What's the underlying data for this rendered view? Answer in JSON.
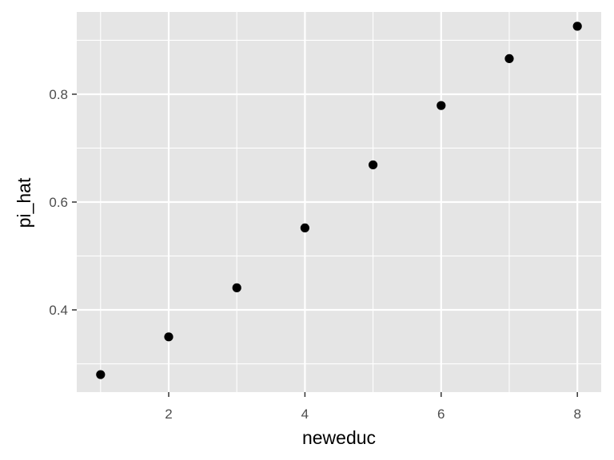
{
  "chart_data": {
    "type": "scatter",
    "xlabel": "neweduc",
    "ylabel": "pi_hat",
    "xlim": [
      0.65,
      8.35
    ],
    "ylim": [
      0.2475,
      0.9525
    ],
    "x_ticks": [
      2,
      4,
      6,
      8
    ],
    "x_tick_labels": [
      "2",
      "4",
      "6",
      "8"
    ],
    "x_minor_ticks": [
      1,
      3,
      5,
      7
    ],
    "y_ticks": [
      0.4,
      0.6,
      0.8
    ],
    "y_tick_labels": [
      "0.4",
      "0.6",
      "0.8"
    ],
    "y_minor_ticks": [
      0.3,
      0.5,
      0.7,
      0.9
    ],
    "grid": true,
    "legend": "none",
    "colors": {
      "panel": "#e5e5e5",
      "grid": "#ffffff",
      "point": "#000000",
      "tick_text": "#4d4d4d",
      "tick_mark": "#333333"
    },
    "points": [
      {
        "x": 1,
        "y": 0.28
      },
      {
        "x": 2,
        "y": 0.35
      },
      {
        "x": 3,
        "y": 0.441
      },
      {
        "x": 4,
        "y": 0.552
      },
      {
        "x": 5,
        "y": 0.669
      },
      {
        "x": 6,
        "y": 0.779
      },
      {
        "x": 7,
        "y": 0.866
      },
      {
        "x": 8,
        "y": 0.926
      }
    ]
  }
}
